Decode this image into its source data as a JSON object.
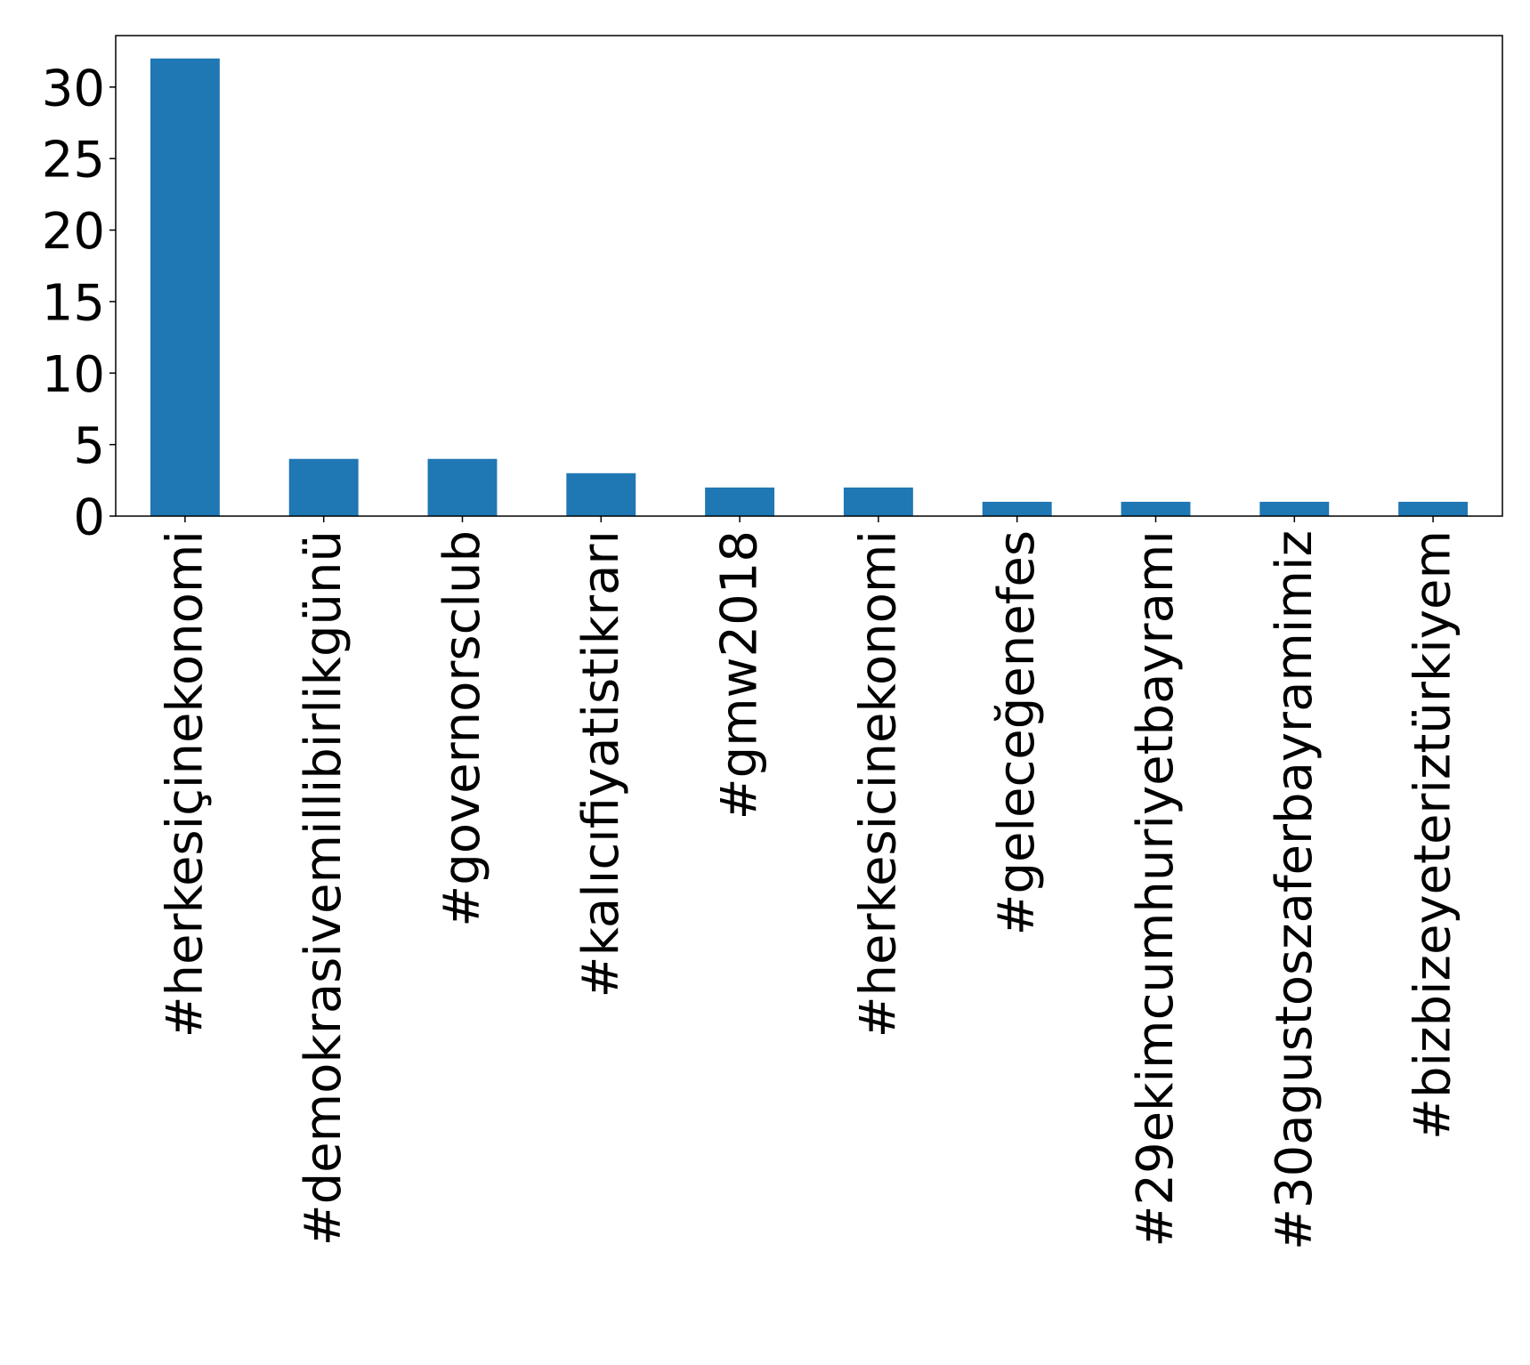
{
  "chart_data": {
    "type": "bar",
    "title": "",
    "xlabel": "",
    "ylabel": "",
    "categories": [
      "#herkesiçinekonomi",
      "#demokrasivemillibirlikgünü",
      "#governorsclub",
      "#kalıcıfiyatistikrarı",
      "#gmw2018",
      "#herkesicinekonomi",
      "#geleceğenefes",
      "#29ekimcumhuriyetbayramı",
      "#30agustoszaferbayramimiz",
      "#bizbizeyeteriztürkiyem"
    ],
    "values": [
      32,
      4,
      4,
      3,
      2,
      2,
      1,
      1,
      1,
      1
    ],
    "ylim": [
      0,
      33.6
    ],
    "yticks": [
      0,
      5,
      10,
      15,
      20,
      25,
      30
    ],
    "bar_color": "#1f77b4",
    "grid": false,
    "legend": "none"
  }
}
